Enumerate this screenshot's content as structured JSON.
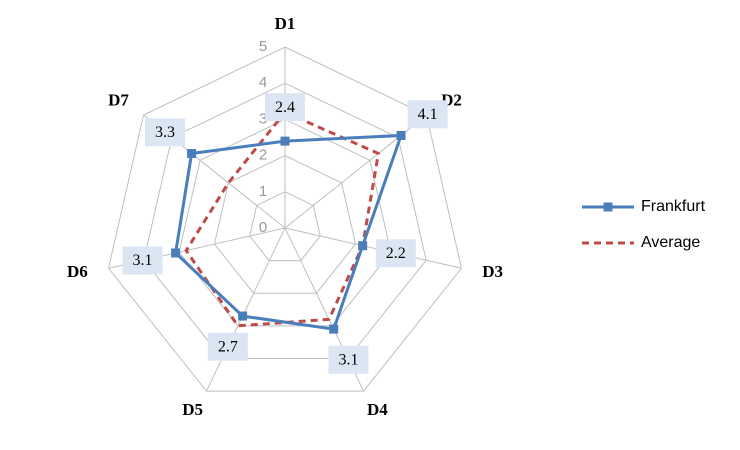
{
  "chart_data": {
    "type": "radar",
    "categories": [
      "D1",
      "D2",
      "D3",
      "D4",
      "D5",
      "D6",
      "D7"
    ],
    "rlim": [
      0,
      5
    ],
    "rticks": [
      0,
      1,
      2,
      3,
      4,
      5
    ],
    "grid": true,
    "legend": "right",
    "series": [
      {
        "name": "Frankfurt",
        "color": "#4a7ebb",
        "style": "solid",
        "marker": "square",
        "values": [
          2.4,
          4.1,
          2.2,
          3.1,
          2.7,
          3.1,
          3.3
        ],
        "data_labels": true
      },
      {
        "name": "Average",
        "color": "#be4b48",
        "style": "dashed",
        "marker": "none",
        "values": [
          3.2,
          3.3,
          2.2,
          2.8,
          3.0,
          2.8,
          2.0
        ],
        "data_labels": false
      }
    ]
  }
}
